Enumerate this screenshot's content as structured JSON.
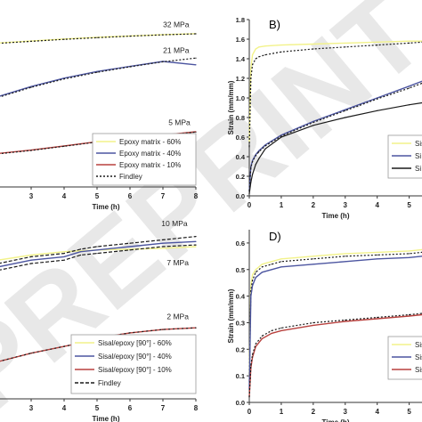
{
  "watermark": {
    "text": "PREPRINT"
  },
  "colors": {
    "yellow": "#f2f28a",
    "blue": "#4c55a0",
    "red": "#b8413e",
    "findley": "#1a1a1a",
    "text": "#222222",
    "axis": "#333333",
    "watermark": "#e6e6e6"
  },
  "chart_data": [
    {
      "panel": "A",
      "type": "line",
      "panel_label": "",
      "xlabel": "Time (h)",
      "ylabel": "",
      "xlim": [
        2,
        8
      ],
      "ylim": [
        0,
        1
      ],
      "xticks": [
        3,
        4,
        5,
        6,
        7,
        8
      ],
      "yticks": [],
      "x": [
        2,
        3,
        4,
        5,
        6,
        7,
        8
      ],
      "series": [
        {
          "name": "Epoxy matrix - 60%",
          "color": "yellow",
          "dash": "none",
          "values": [
            0.86,
            0.872,
            0.884,
            0.894,
            0.902,
            0.91,
            0.916
          ]
        },
        {
          "name": "Findley",
          "color": "findley",
          "dash": "2,2",
          "values": [
            0.858,
            0.87,
            0.882,
            0.892,
            0.901,
            0.909,
            0.915
          ]
        },
        {
          "name": "Epoxy matrix - 40%",
          "color": "blue",
          "dash": "none",
          "values": [
            0.54,
            0.6,
            0.65,
            0.69,
            0.72,
            0.75,
            0.73
          ]
        },
        {
          "name": "Findley",
          "color": "findley",
          "dash": "2,2",
          "values": [
            0.535,
            0.595,
            0.645,
            0.685,
            0.718,
            0.748,
            0.77
          ]
        },
        {
          "name": "Epoxy matrix - 10%",
          "color": "red",
          "dash": "none",
          "values": [
            0.2,
            0.22,
            0.245,
            0.27,
            0.29,
            0.31,
            0.33
          ]
        },
        {
          "name": "Findley",
          "color": "findley",
          "dash": "2,2",
          "values": [
            0.198,
            0.218,
            0.243,
            0.268,
            0.288,
            0.308,
            0.328
          ]
        }
      ],
      "annotations": [
        {
          "text": "32 MPa",
          "x": 7.4,
          "y": 0.955
        },
        {
          "text": "21 MPa",
          "x": 7.4,
          "y": 0.8
        },
        {
          "text": "5 MPa",
          "x": 7.5,
          "y": 0.37
        }
      ],
      "legend": {
        "placement": "bottom-right",
        "entries": [
          {
            "label": "Epoxy matrix - 60%",
            "color": "yellow",
            "dash": "none"
          },
          {
            "label": "Epoxy matrix - 40%",
            "color": "blue",
            "dash": "none"
          },
          {
            "label": "Epoxy matrix - 10%",
            "color": "red",
            "dash": "none"
          },
          {
            "label": "Findley",
            "color": "findley",
            "dash": "2,2"
          }
        ]
      }
    },
    {
      "panel": "B",
      "type": "line",
      "panel_label": "B)",
      "xlabel": "Time (h)",
      "ylabel": "Strain (mm/mm)",
      "xlim": [
        0,
        5.4
      ],
      "ylim": [
        0,
        1.8
      ],
      "xticks": [
        0,
        1,
        2,
        3,
        4,
        5
      ],
      "yticks": [
        0.0,
        0.2,
        0.4,
        0.6,
        0.8,
        1.0,
        1.2,
        1.4,
        1.6,
        1.8
      ],
      "x": [
        0,
        0.05,
        0.1,
        0.2,
        0.3,
        0.5,
        1,
        2,
        3,
        4,
        5,
        5.4
      ],
      "series": [
        {
          "name": "yellow",
          "color": "yellow",
          "dash": "none",
          "values": [
            0.55,
            1.3,
            1.44,
            1.5,
            1.52,
            1.53,
            1.54,
            1.55,
            1.56,
            1.57,
            1.58,
            1.58
          ]
        },
        {
          "name": "findley-upper",
          "color": "findley",
          "dash": "2,2",
          "values": [
            0.5,
            1.2,
            1.34,
            1.4,
            1.42,
            1.44,
            1.47,
            1.5,
            1.52,
            1.54,
            1.56,
            1.57
          ]
        },
        {
          "name": "blue",
          "color": "blue",
          "dash": "none",
          "values": [
            0.05,
            0.3,
            0.36,
            0.42,
            0.46,
            0.52,
            0.62,
            0.76,
            0.88,
            1.0,
            1.12,
            1.17
          ]
        },
        {
          "name": "findley-mid",
          "color": "findley",
          "dash": "2,2",
          "values": [
            0.05,
            0.29,
            0.35,
            0.41,
            0.45,
            0.51,
            0.61,
            0.75,
            0.87,
            0.99,
            1.1,
            1.15
          ]
        },
        {
          "name": "gray",
          "color": "findley",
          "dash": "none",
          "values": [
            0.02,
            0.14,
            0.22,
            0.32,
            0.38,
            0.48,
            0.6,
            0.72,
            0.8,
            0.87,
            0.93,
            0.95
          ]
        }
      ],
      "annotations": [],
      "legend": {
        "placement": "bottom-right",
        "entries": [
          {
            "label": "Sis",
            "color": "yellow",
            "dash": "none"
          },
          {
            "label": "Si",
            "color": "blue",
            "dash": "none"
          },
          {
            "label": "Si",
            "color": "findley",
            "dash": "none"
          }
        ]
      }
    },
    {
      "panel": "C",
      "type": "line",
      "panel_label": "",
      "xlabel": "Time (h)",
      "ylabel": "",
      "xlim": [
        2,
        8
      ],
      "ylim": [
        0,
        1
      ],
      "xticks": [
        3,
        4,
        5,
        6,
        7,
        8
      ],
      "yticks": [],
      "x": [
        2,
        3,
        4,
        4.5,
        5,
        6,
        7,
        8
      ],
      "series": [
        {
          "name": "Sisal/epoxy [90°] - 60%",
          "color": "yellow",
          "dash": "none",
          "values": [
            0.82,
            0.85,
            0.87,
            0.875,
            0.88,
            0.885,
            0.89,
            0.9
          ]
        },
        {
          "name": "Sisal/epoxy [90°] - 40%",
          "color": "blue",
          "dash": "none",
          "values": [
            0.78,
            0.82,
            0.84,
            0.87,
            0.88,
            0.9,
            0.92,
            0.93
          ]
        },
        {
          "name": "Findley",
          "color": "findley",
          "dash": "4,2",
          "values": [
            0.8,
            0.84,
            0.86,
            0.885,
            0.9,
            0.92,
            0.94,
            0.96
          ]
        },
        {
          "name": "Findley",
          "color": "findley",
          "dash": "4,2",
          "values": [
            0.76,
            0.8,
            0.82,
            0.85,
            0.86,
            0.88,
            0.9,
            0.91
          ]
        },
        {
          "name": "Sisal/epoxy [90°] - 10%",
          "color": "red",
          "dash": "none",
          "values": [
            0.22,
            0.27,
            0.31,
            0.33,
            0.36,
            0.39,
            0.41,
            0.42
          ]
        },
        {
          "name": "Findley",
          "color": "findley",
          "dash": "2,3",
          "values": [
            0.22,
            0.27,
            0.31,
            0.33,
            0.36,
            0.39,
            0.41,
            0.42
          ]
        }
      ],
      "annotations": [
        {
          "text": "10 MPa",
          "x": 7.35,
          "y": 1.02
        },
        {
          "text": "7 MPa",
          "x": 7.45,
          "y": 0.79
        },
        {
          "text": "2 MPa",
          "x": 7.45,
          "y": 0.47
        }
      ],
      "legend": {
        "placement": "bottom-right",
        "entries": [
          {
            "label": "Sisal/epoxy [90°] - 60%",
            "color": "yellow",
            "dash": "none"
          },
          {
            "label": "Sisal/epoxy [90°] - 40%",
            "color": "blue",
            "dash": "none"
          },
          {
            "label": "Sisal/epoxy [90°] - 10%",
            "color": "red",
            "dash": "none"
          },
          {
            "label": "Findley",
            "color": "findley",
            "dash": "4,2"
          }
        ]
      }
    },
    {
      "panel": "D",
      "type": "line",
      "panel_label": "D)",
      "xlabel": "Time (h)",
      "ylabel": "Strain (mm/mm)",
      "xlim": [
        0,
        5.4
      ],
      "ylim": [
        0,
        0.65
      ],
      "xticks": [
        0,
        1,
        2,
        3,
        4,
        5
      ],
      "yticks": [
        0.0,
        0.1,
        0.2,
        0.3,
        0.4,
        0.5,
        0.6
      ],
      "x": [
        0,
        0.05,
        0.1,
        0.2,
        0.4,
        0.7,
        1,
        2,
        3,
        4,
        5,
        5.4
      ],
      "series": [
        {
          "name": "yellow",
          "color": "yellow",
          "dash": "none",
          "values": [
            0.1,
            0.44,
            0.48,
            0.5,
            0.52,
            0.53,
            0.54,
            0.55,
            0.56,
            0.565,
            0.57,
            0.575
          ]
        },
        {
          "name": "findley-top",
          "color": "findley",
          "dash": "2,2",
          "values": [
            0.08,
            0.42,
            0.46,
            0.49,
            0.51,
            0.52,
            0.53,
            0.54,
            0.55,
            0.555,
            0.56,
            0.565
          ]
        },
        {
          "name": "blue",
          "color": "blue",
          "dash": "none",
          "values": [
            0.05,
            0.4,
            0.44,
            0.47,
            0.49,
            0.5,
            0.51,
            0.52,
            0.53,
            0.54,
            0.545,
            0.55
          ]
        },
        {
          "name": "red",
          "color": "red",
          "dash": "none",
          "values": [
            0.02,
            0.13,
            0.17,
            0.21,
            0.24,
            0.26,
            0.27,
            0.29,
            0.305,
            0.315,
            0.325,
            0.33
          ]
        },
        {
          "name": "findley-low",
          "color": "findley",
          "dash": "2,2",
          "values": [
            0.02,
            0.14,
            0.18,
            0.22,
            0.25,
            0.27,
            0.28,
            0.3,
            0.31,
            0.32,
            0.33,
            0.335
          ]
        }
      ],
      "annotations": [],
      "legend": {
        "placement": "bottom-right",
        "entries": [
          {
            "label": "Sisal/ep",
            "color": "yellow",
            "dash": "none"
          },
          {
            "label": "Sisal/ep",
            "color": "blue",
            "dash": "none"
          },
          {
            "label": "Sisal/ep",
            "color": "red",
            "dash": "none"
          }
        ]
      }
    }
  ]
}
